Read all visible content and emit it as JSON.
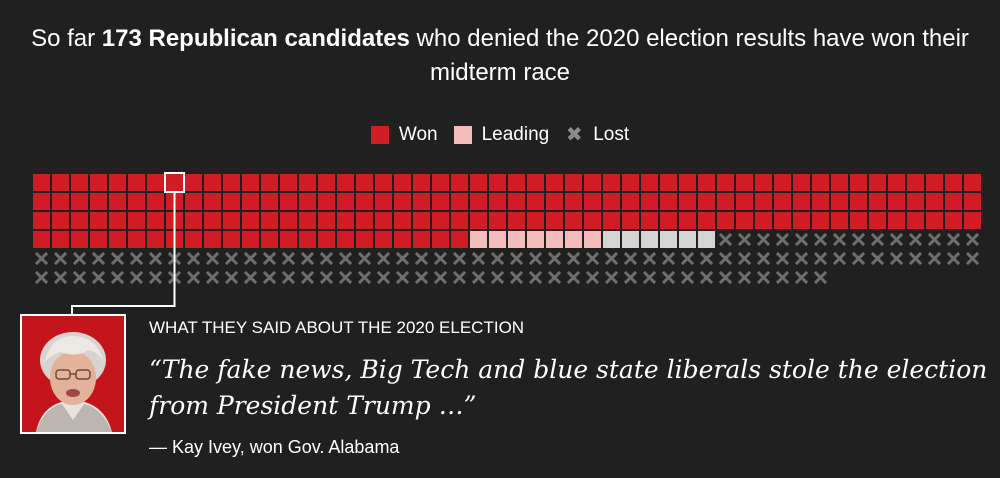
{
  "headline": {
    "pre": "So far ",
    "bold": "173 Republican candidates",
    "post": " who denied the 2020 election results have won their midterm race"
  },
  "legend": {
    "won_label": "Won",
    "leading_label": "Leading",
    "lost_label": "Lost",
    "lost_glyph": "✖"
  },
  "colors": {
    "won": "#d01c24",
    "leading": "#f5bcbc",
    "pending": "#d4d4d4",
    "lost": "#6e6e6e",
    "background": "#202020"
  },
  "chart_data": {
    "type": "waffle",
    "columns": 50,
    "counts": {
      "won": 173,
      "leading": 7,
      "pending": 6,
      "lost": 106
    },
    "highlighted_candidate": "Kay Ivey, won Gov. Alabama"
  },
  "callout": {
    "kicker": "WHAT THEY SAID ABOUT THE 2020 ELECTION",
    "quote": "“The fake news, Big Tech and blue state liberals stole the election from President Trump …”",
    "attribution": "— Kay Ivey, won Gov. Alabama"
  }
}
